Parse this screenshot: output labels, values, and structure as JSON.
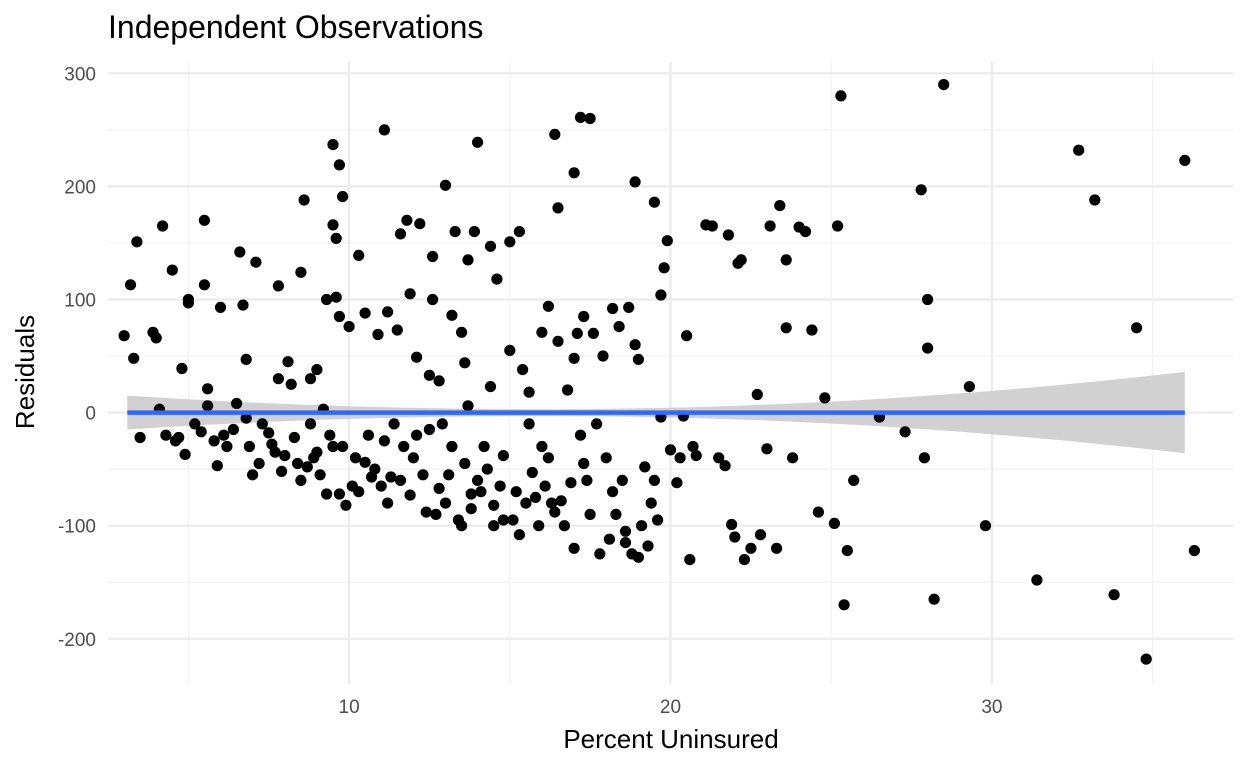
{
  "chart_data": {
    "type": "scatter",
    "title": "Independent Observations",
    "xlabel": "Percent Uninsured",
    "ylabel": "Residuals",
    "xlim": [
      2.5,
      37.5
    ],
    "ylim": [
      -240,
      310
    ],
    "x_ticks": [
      10,
      20,
      30
    ],
    "y_ticks": [
      -200,
      -100,
      0,
      100,
      200,
      300
    ],
    "grid": true,
    "legend": "none",
    "colors": {
      "points": "#000000",
      "fit_line": "#3366ff",
      "confidence_band": "#cccccc"
    },
    "fit_line": {
      "type": "linear",
      "x": [
        3.1,
        36.0
      ],
      "y": [
        0,
        0
      ],
      "ci_upper": [
        15,
        36
      ],
      "ci_lower": [
        -15,
        -36
      ],
      "ci_x_min_width": 16.0,
      "ci_min_half_width": 3
    },
    "points": [
      [
        3.0,
        68
      ],
      [
        3.2,
        113
      ],
      [
        3.3,
        48
      ],
      [
        3.4,
        151
      ],
      [
        3.5,
        -22
      ],
      [
        3.9,
        71
      ],
      [
        4.0,
        66
      ],
      [
        4.1,
        3
      ],
      [
        4.2,
        165
      ],
      [
        4.3,
        -20
      ],
      [
        4.5,
        126
      ],
      [
        4.6,
        -25
      ],
      [
        4.7,
        -22
      ],
      [
        4.8,
        39
      ],
      [
        4.9,
        -37
      ],
      [
        5.0,
        100
      ],
      [
        5.0,
        97
      ],
      [
        5.2,
        -10
      ],
      [
        5.4,
        -17
      ],
      [
        5.5,
        170
      ],
      [
        5.5,
        113
      ],
      [
        5.6,
        21
      ],
      [
        5.6,
        6
      ],
      [
        5.8,
        -25
      ],
      [
        5.9,
        -47
      ],
      [
        6.0,
        93
      ],
      [
        6.1,
        -20
      ],
      [
        6.2,
        -30
      ],
      [
        6.4,
        -15
      ],
      [
        6.5,
        8
      ],
      [
        6.6,
        142
      ],
      [
        6.7,
        95
      ],
      [
        6.8,
        -5
      ],
      [
        6.8,
        47
      ],
      [
        6.9,
        -30
      ],
      [
        7.0,
        -55
      ],
      [
        7.1,
        133
      ],
      [
        7.2,
        -45
      ],
      [
        7.3,
        -10
      ],
      [
        7.5,
        -18
      ],
      [
        7.6,
        -28
      ],
      [
        7.7,
        -35
      ],
      [
        7.8,
        112
      ],
      [
        7.8,
        30
      ],
      [
        7.9,
        -52
      ],
      [
        8.0,
        -38
      ],
      [
        8.1,
        45
      ],
      [
        8.2,
        25
      ],
      [
        8.3,
        -22
      ],
      [
        8.4,
        -45
      ],
      [
        8.5,
        -60
      ],
      [
        8.5,
        124
      ],
      [
        8.6,
        188
      ],
      [
        8.7,
        -48
      ],
      [
        8.8,
        30
      ],
      [
        8.8,
        -10
      ],
      [
        8.9,
        -40
      ],
      [
        9.0,
        -35
      ],
      [
        9.0,
        38
      ],
      [
        9.1,
        -55
      ],
      [
        9.2,
        3
      ],
      [
        9.3,
        -72
      ],
      [
        9.3,
        100
      ],
      [
        9.4,
        -20
      ],
      [
        9.5,
        237
      ],
      [
        9.5,
        166
      ],
      [
        9.5,
        -30
      ],
      [
        9.6,
        154
      ],
      [
        9.6,
        102
      ],
      [
        9.7,
        219
      ],
      [
        9.7,
        85
      ],
      [
        9.7,
        -72
      ],
      [
        9.8,
        -30
      ],
      [
        9.8,
        191
      ],
      [
        9.9,
        -82
      ],
      [
        10.0,
        76
      ],
      [
        10.1,
        -65
      ],
      [
        10.2,
        -40
      ],
      [
        10.3,
        -70
      ],
      [
        10.3,
        139
      ],
      [
        10.5,
        -44
      ],
      [
        10.5,
        88
      ],
      [
        10.6,
        -20
      ],
      [
        10.7,
        -57
      ],
      [
        10.8,
        -50
      ],
      [
        10.9,
        69
      ],
      [
        11.0,
        -65
      ],
      [
        11.1,
        -25
      ],
      [
        11.1,
        250
      ],
      [
        11.2,
        89
      ],
      [
        11.2,
        -80
      ],
      [
        11.3,
        -57
      ],
      [
        11.4,
        -10
      ],
      [
        11.5,
        73
      ],
      [
        11.6,
        158
      ],
      [
        11.6,
        -60
      ],
      [
        11.7,
        -30
      ],
      [
        11.8,
        170
      ],
      [
        11.9,
        105
      ],
      [
        11.9,
        -73
      ],
      [
        12.0,
        -40
      ],
      [
        12.1,
        49
      ],
      [
        12.1,
        -20
      ],
      [
        12.2,
        167
      ],
      [
        12.3,
        -55
      ],
      [
        12.4,
        -88
      ],
      [
        12.5,
        33
      ],
      [
        12.5,
        -15
      ],
      [
        12.6,
        138
      ],
      [
        12.6,
        100
      ],
      [
        12.7,
        -90
      ],
      [
        12.8,
        -67
      ],
      [
        12.8,
        28
      ],
      [
        12.9,
        -10
      ],
      [
        13.0,
        201
      ],
      [
        13.0,
        -80
      ],
      [
        13.1,
        -55
      ],
      [
        13.2,
        86
      ],
      [
        13.2,
        -30
      ],
      [
        13.3,
        160
      ],
      [
        13.4,
        -95
      ],
      [
        13.5,
        71
      ],
      [
        13.5,
        -100
      ],
      [
        13.6,
        44
      ],
      [
        13.6,
        -45
      ],
      [
        13.7,
        6
      ],
      [
        13.7,
        135
      ],
      [
        13.8,
        -85
      ],
      [
        13.8,
        -72
      ],
      [
        13.9,
        160
      ],
      [
        14.0,
        -60
      ],
      [
        14.0,
        239
      ],
      [
        14.1,
        -70
      ],
      [
        14.2,
        -30
      ],
      [
        14.3,
        -50
      ],
      [
        14.4,
        23
      ],
      [
        14.4,
        147
      ],
      [
        14.5,
        -100
      ],
      [
        14.5,
        -82
      ],
      [
        14.6,
        118
      ],
      [
        14.7,
        -65
      ],
      [
        14.8,
        -38
      ],
      [
        14.8,
        -95
      ],
      [
        15.0,
        151
      ],
      [
        15.0,
        55
      ],
      [
        15.1,
        -95
      ],
      [
        15.2,
        -70
      ],
      [
        15.3,
        160
      ],
      [
        15.3,
        -108
      ],
      [
        15.4,
        38
      ],
      [
        15.5,
        -80
      ],
      [
        15.6,
        -10
      ],
      [
        15.6,
        18
      ],
      [
        15.7,
        -53
      ],
      [
        15.8,
        -75
      ],
      [
        15.9,
        -100
      ],
      [
        16.0,
        71
      ],
      [
        16.0,
        -30
      ],
      [
        16.1,
        -65
      ],
      [
        16.2,
        94
      ],
      [
        16.2,
        -40
      ],
      [
        16.3,
        -80
      ],
      [
        16.4,
        -88
      ],
      [
        16.4,
        246
      ],
      [
        16.5,
        63
      ],
      [
        16.5,
        181
      ],
      [
        16.6,
        -78
      ],
      [
        16.7,
        -100
      ],
      [
        16.8,
        20
      ],
      [
        16.9,
        -62
      ],
      [
        17.0,
        212
      ],
      [
        17.0,
        -120
      ],
      [
        17.0,
        48
      ],
      [
        17.1,
        70
      ],
      [
        17.2,
        -20
      ],
      [
        17.2,
        261
      ],
      [
        17.3,
        -45
      ],
      [
        17.3,
        85
      ],
      [
        17.4,
        -60
      ],
      [
        17.5,
        260
      ],
      [
        17.5,
        -90
      ],
      [
        17.6,
        70
      ],
      [
        17.7,
        -10
      ],
      [
        17.8,
        -125
      ],
      [
        17.9,
        50
      ],
      [
        18.0,
        -40
      ],
      [
        18.1,
        -112
      ],
      [
        18.2,
        92
      ],
      [
        18.2,
        -70
      ],
      [
        18.3,
        -90
      ],
      [
        18.4,
        76
      ],
      [
        18.5,
        -60
      ],
      [
        18.6,
        -105
      ],
      [
        18.6,
        -115
      ],
      [
        18.7,
        93
      ],
      [
        18.8,
        -125
      ],
      [
        18.9,
        60
      ],
      [
        18.9,
        204
      ],
      [
        19.0,
        47
      ],
      [
        19.0,
        -128
      ],
      [
        19.1,
        -100
      ],
      [
        19.2,
        -48
      ],
      [
        19.3,
        -118
      ],
      [
        19.4,
        -80
      ],
      [
        19.5,
        186
      ],
      [
        19.5,
        -60
      ],
      [
        19.6,
        -95
      ],
      [
        19.7,
        104
      ],
      [
        19.7,
        -4
      ],
      [
        19.8,
        128
      ],
      [
        19.9,
        152
      ],
      [
        20.0,
        -33
      ],
      [
        20.2,
        -62
      ],
      [
        20.3,
        -40
      ],
      [
        20.4,
        -3
      ],
      [
        20.5,
        68
      ],
      [
        20.6,
        -130
      ],
      [
        20.7,
        -30
      ],
      [
        20.8,
        -38
      ],
      [
        21.1,
        166
      ],
      [
        21.3,
        165
      ],
      [
        21.5,
        -40
      ],
      [
        21.7,
        -47
      ],
      [
        21.8,
        157
      ],
      [
        21.9,
        -99
      ],
      [
        22.0,
        -110
      ],
      [
        22.1,
        132
      ],
      [
        22.2,
        135
      ],
      [
        22.3,
        -130
      ],
      [
        22.5,
        -120
      ],
      [
        22.7,
        16
      ],
      [
        22.8,
        -108
      ],
      [
        23.0,
        -32
      ],
      [
        23.1,
        165
      ],
      [
        23.3,
        -120
      ],
      [
        23.4,
        183
      ],
      [
        23.6,
        135
      ],
      [
        23.6,
        75
      ],
      [
        23.8,
        -40
      ],
      [
        24.0,
        164
      ],
      [
        24.2,
        160
      ],
      [
        24.4,
        73
      ],
      [
        24.6,
        -88
      ],
      [
        24.8,
        13
      ],
      [
        25.1,
        -98
      ],
      [
        25.2,
        165
      ],
      [
        25.3,
        280
      ],
      [
        25.4,
        -170
      ],
      [
        25.5,
        -122
      ],
      [
        25.7,
        -60
      ],
      [
        26.5,
        -4
      ],
      [
        27.3,
        -17
      ],
      [
        27.8,
        197
      ],
      [
        27.9,
        -40
      ],
      [
        28.0,
        100
      ],
      [
        28.0,
        57
      ],
      [
        28.2,
        -165
      ],
      [
        28.5,
        290
      ],
      [
        29.3,
        23
      ],
      [
        29.8,
        -100
      ],
      [
        31.4,
        -148
      ],
      [
        32.7,
        232
      ],
      [
        33.2,
        188
      ],
      [
        33.8,
        -161
      ],
      [
        34.5,
        75
      ],
      [
        34.8,
        -218
      ],
      [
        36.0,
        223
      ],
      [
        36.3,
        -122
      ]
    ]
  }
}
